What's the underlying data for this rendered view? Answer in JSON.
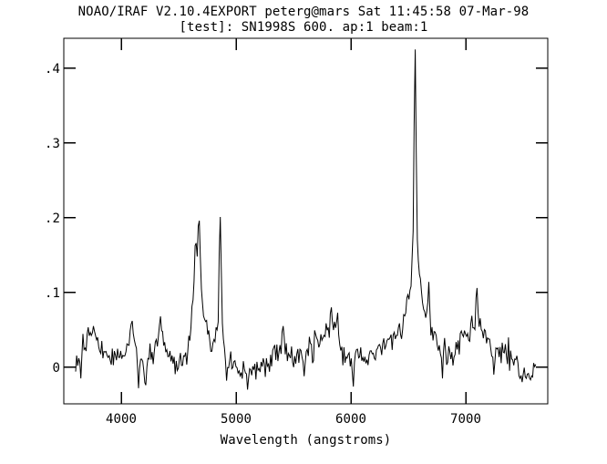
{
  "window": {
    "background": "#ffffff",
    "foreground": "#000000"
  },
  "chart_data": {
    "type": "line",
    "title": "NOAO/IRAF V2.10.4EXPORT peterg@mars Sat 11:45:58 07-Mar-98",
    "subtitle": "[test]: SN1998S 600. ap:1 beam:1",
    "xlabel": "Wavelength (angstroms)",
    "ylabel": "",
    "xlim": [
      3500,
      7714
    ],
    "ylim": [
      -0.049,
      0.44
    ],
    "grid": false,
    "legend": false,
    "line_color": "#000000",
    "xticks": [
      {
        "value": 4000,
        "label": "4000"
      },
      {
        "value": 5000,
        "label": "5000"
      },
      {
        "value": 6000,
        "label": "6000"
      },
      {
        "value": 7000,
        "label": "7000"
      }
    ],
    "yticks": [
      {
        "value": 0.0,
        "label": "0"
      },
      {
        "value": 0.1,
        "label": ".1"
      },
      {
        "value": 0.2,
        "label": ".2"
      },
      {
        "value": 0.3,
        "label": ".3"
      },
      {
        "value": 0.4,
        "label": ".4"
      }
    ],
    "series": [
      {
        "name": "SN1998S 600. ap:1 beam:1",
        "x_start": 3603,
        "x_end": 7611,
        "envelope": [
          [
            3603,
            0.0
          ],
          [
            3622,
            0.015
          ],
          [
            3660,
            0.025
          ],
          [
            3700,
            0.036
          ],
          [
            3745,
            0.042
          ],
          [
            3785,
            0.036
          ],
          [
            3825,
            0.02
          ],
          [
            3865,
            0.012
          ],
          [
            3925,
            0.008
          ],
          [
            3985,
            0.012
          ],
          [
            4025,
            0.02
          ],
          [
            4060,
            0.032
          ],
          [
            4090,
            0.046
          ],
          [
            4120,
            0.034
          ],
          [
            4160,
            0.01
          ],
          [
            4200,
            0.003
          ],
          [
            4240,
            0.006
          ],
          [
            4285,
            0.02
          ],
          [
            4320,
            0.04
          ],
          [
            4340,
            0.052
          ],
          [
            4365,
            0.035
          ],
          [
            4405,
            0.014
          ],
          [
            4455,
            0.005
          ],
          [
            4510,
            0.007
          ],
          [
            4560,
            0.018
          ],
          [
            4600,
            0.038
          ],
          [
            4628,
            0.085
          ],
          [
            4645,
            0.148
          ],
          [
            4658,
            0.122
          ],
          [
            4672,
            0.183
          ],
          [
            4692,
            0.115
          ],
          [
            4712,
            0.075
          ],
          [
            4740,
            0.052
          ],
          [
            4775,
            0.038
          ],
          [
            4812,
            0.036
          ],
          [
            4840,
            0.052
          ],
          [
            4854,
            0.1
          ],
          [
            4862,
            0.195
          ],
          [
            4872,
            0.09
          ],
          [
            4888,
            0.04
          ],
          [
            4912,
            0.018
          ],
          [
            4955,
            0.004
          ],
          [
            5010,
            -0.003
          ],
          [
            5070,
            -0.006
          ],
          [
            5130,
            -0.004
          ],
          [
            5190,
            0.0
          ],
          [
            5255,
            0.005
          ],
          [
            5320,
            0.012
          ],
          [
            5372,
            0.02
          ],
          [
            5408,
            0.036
          ],
          [
            5442,
            0.02
          ],
          [
            5485,
            0.012
          ],
          [
            5545,
            0.013
          ],
          [
            5605,
            0.02
          ],
          [
            5662,
            0.03
          ],
          [
            5722,
            0.042
          ],
          [
            5782,
            0.05
          ],
          [
            5832,
            0.055
          ],
          [
            5872,
            0.05
          ],
          [
            5902,
            0.04
          ],
          [
            5928,
            0.022
          ],
          [
            5965,
            0.016
          ],
          [
            6015,
            0.013
          ],
          [
            6085,
            0.016
          ],
          [
            6155,
            0.018
          ],
          [
            6225,
            0.021
          ],
          [
            6290,
            0.026
          ],
          [
            6352,
            0.035
          ],
          [
            6412,
            0.047
          ],
          [
            6462,
            0.065
          ],
          [
            6502,
            0.09
          ],
          [
            6527,
            0.128
          ],
          [
            6545,
            0.19
          ],
          [
            6555,
            0.26
          ],
          [
            6560,
            0.42
          ],
          [
            6564,
            0.26
          ],
          [
            6572,
            0.2
          ],
          [
            6586,
            0.148
          ],
          [
            6602,
            0.112
          ],
          [
            6622,
            0.088
          ],
          [
            6646,
            0.07
          ],
          [
            6672,
            0.06
          ],
          [
            6702,
            0.054
          ],
          [
            6732,
            0.045
          ],
          [
            6766,
            0.033
          ],
          [
            6802,
            0.025
          ],
          [
            6852,
            0.02
          ],
          [
            6902,
            0.024
          ],
          [
            6952,
            0.031
          ],
          [
            7002,
            0.043
          ],
          [
            7042,
            0.058
          ],
          [
            7078,
            0.068
          ],
          [
            7112,
            0.058
          ],
          [
            7152,
            0.044
          ],
          [
            7202,
            0.032
          ],
          [
            7262,
            0.024
          ],
          [
            7322,
            0.019
          ],
          [
            7382,
            0.012
          ],
          [
            7442,
            0.005
          ],
          [
            7502,
            -0.005
          ],
          [
            7542,
            -0.01
          ],
          [
            7567,
            -0.012
          ],
          [
            7592,
            -0.006
          ],
          [
            7611,
            -0.002
          ]
        ],
        "spikes": [
          [
            3645,
            -0.015
          ],
          [
            3755,
            0.055
          ],
          [
            4092,
            0.062
          ],
          [
            4155,
            -0.028
          ],
          [
            4211,
            -0.024
          ],
          [
            4338,
            0.068
          ],
          [
            4650,
            0.166
          ],
          [
            4676,
            0.196
          ],
          [
            4862,
            0.201
          ],
          [
            4920,
            -0.018
          ],
          [
            5102,
            -0.03
          ],
          [
            5410,
            0.055
          ],
          [
            5590,
            -0.012
          ],
          [
            5828,
            0.08
          ],
          [
            5888,
            0.073
          ],
          [
            6018,
            -0.026
          ],
          [
            6561,
            0.425
          ],
          [
            6681,
            0.114
          ],
          [
            6795,
            -0.015
          ],
          [
            7094,
            0.106
          ],
          [
            7240,
            -0.01
          ],
          [
            7470,
            -0.015
          ]
        ],
        "noise_sigma": [
          [
            3603,
            0.009
          ],
          [
            3900,
            0.009
          ],
          [
            4300,
            0.009
          ],
          [
            4700,
            0.008
          ],
          [
            4870,
            0.006
          ],
          [
            5100,
            0.009
          ],
          [
            5400,
            0.008
          ],
          [
            5700,
            0.01
          ],
          [
            5860,
            0.011
          ],
          [
            6100,
            0.009
          ],
          [
            6450,
            0.008
          ],
          [
            6560,
            0.005
          ],
          [
            6700,
            0.009
          ],
          [
            6950,
            0.01
          ],
          [
            7120,
            0.012
          ],
          [
            7350,
            0.011
          ],
          [
            7520,
            0.008
          ],
          [
            7611,
            0.005
          ]
        ]
      }
    ]
  }
}
